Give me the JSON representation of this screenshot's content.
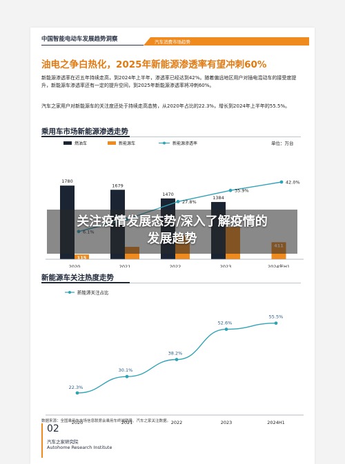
{
  "header": {
    "report_title": "中国智能电动车发展趋势洞察",
    "section_tab": "汽车消费市场趋势"
  },
  "headline": "油电之争白热化，2025年新能源渗透率有望冲刺60%",
  "paragraphs": [
    "新能源渗透率在近五年持续走高，到2024年上半年，渗透率已经达到42%。随着偏远地区用户对插电混动车的接受度提升，新能源车渗透率还有一定的提升空间，到2025年新能源渗透率将冲刺60%。",
    "汽车之家用户对新能源车的关注度还处于持续走高态势，从2020年占比的22.3%，增长到2024年上半年的55.5%。"
  ],
  "chart1_title": "乘用车市场新能源渗透走势",
  "chart2_title": "新能源车关注热度走势",
  "source_note": "数据来源：全国乘用车市场信息联席会乘用车终端销量、汽车之家关注数据。",
  "footer": {
    "page_number": "02",
    "org_cn": "汽车之家研究院",
    "org_en": "Autohome Research Institute"
  },
  "overlay": {
    "line1": "关注疫情发展态势/深入了解疫情的",
    "line2": "发展趋势"
  },
  "colors": {
    "fuel": "#1b2433",
    "nev": "#ef8a1e",
    "rate": "#2fa3b5",
    "accent": "#e07a12"
  },
  "chart_data": [
    {
      "type": "bar",
      "unit_label": "单位：万台",
      "categories": [
        "2020",
        "2021",
        "2022",
        "2023",
        "2024年H1"
      ],
      "series": [
        {
          "name": "燃油车",
          "values": [
            1780,
            1679,
            1470,
            1384,
            null
          ],
          "labels": [
            "1780",
            "1679",
            "1470",
            "1384",
            ""
          ]
        },
        {
          "name": "新能源车",
          "values": [
            115,
            300,
            580,
            780,
            411
          ],
          "labels": [
            "115",
            "",
            "",
            "",
            "411"
          ]
        },
        {
          "name": "新能源渗透率",
          "type": "line",
          "values": [
            6.1,
            15.0,
            27.8,
            35.9,
            42.0
          ],
          "labels": [
            "6.1%",
            "",
            "27.8%",
            "35.9%",
            "42.0%"
          ]
        }
      ],
      "legend": "top"
    },
    {
      "type": "line",
      "categories": [
        "2020",
        "2021",
        "2022",
        "2023",
        "2024H1"
      ],
      "series": [
        {
          "name": "新能源关注占比",
          "values": [
            22.3,
            30.1,
            38.2,
            52.6,
            55.5
          ],
          "labels": [
            "22.3%",
            "30.1%",
            "38.2%",
            "52.6%",
            "55.5%"
          ]
        }
      ],
      "legend": "top-left"
    }
  ]
}
